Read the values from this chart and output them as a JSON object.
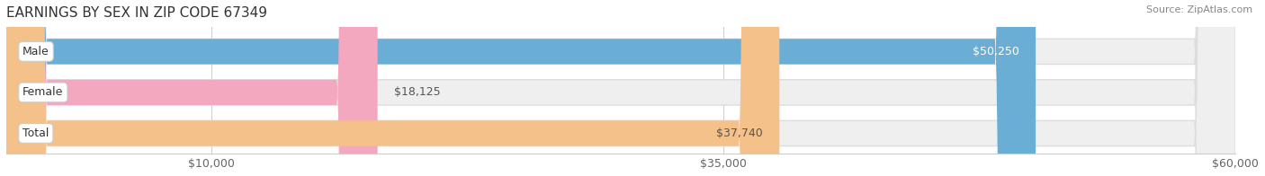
{
  "title": "EARNINGS BY SEX IN ZIP CODE 67349",
  "source": "Source: ZipAtlas.com",
  "categories": [
    "Male",
    "Female",
    "Total"
  ],
  "values": [
    50250,
    18125,
    37740
  ],
  "bar_colors": [
    "#6aaed6",
    "#f4a8c0",
    "#f5c18a"
  ],
  "label_inside": [
    true,
    false,
    true
  ],
  "bg_color": "#f7f7f7",
  "xmin": 0,
  "xmax": 60000,
  "xticks": [
    10000,
    35000,
    60000
  ],
  "xtick_labels": [
    "$10,000",
    "$35,000",
    "$60,000"
  ],
  "value_labels": [
    "$50,250",
    "$18,125",
    "$37,740"
  ],
  "value_label_colors": [
    "white",
    "#555555",
    "#555555"
  ],
  "figsize": [
    14.06,
    1.96
  ],
  "dpi": 100
}
